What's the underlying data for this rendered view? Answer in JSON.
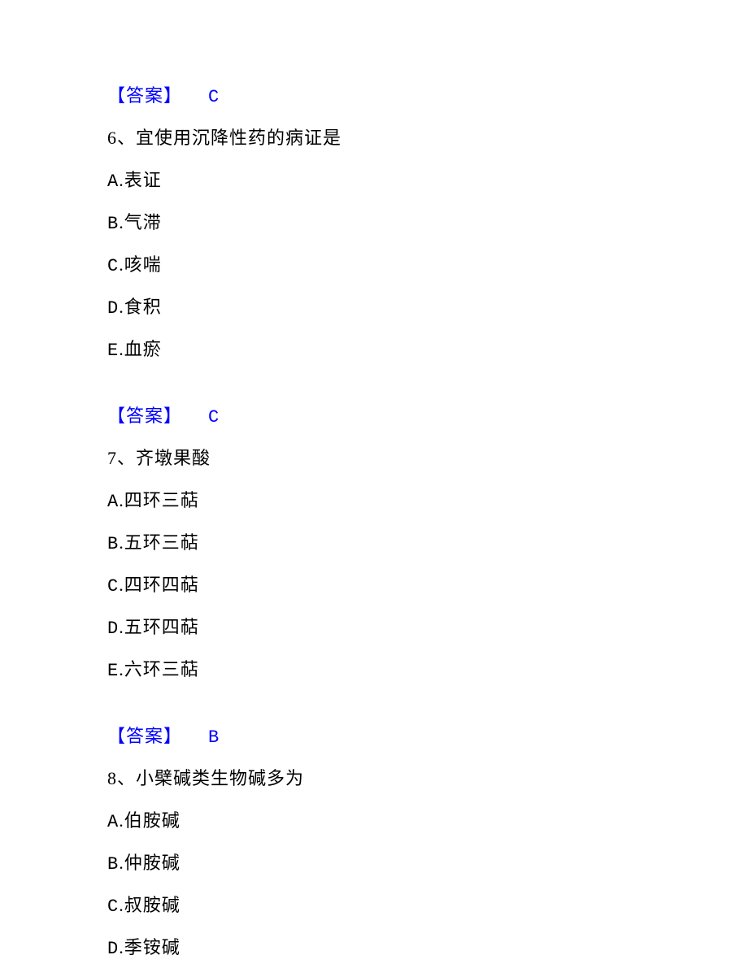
{
  "colors": {
    "answer_color": "#0000ff",
    "text_color": "#000000",
    "background": "#ffffff"
  },
  "typography": {
    "font_family": "SimSun",
    "font_size": 22,
    "line_spacing": 20
  },
  "answer_label": "【答案】",
  "blocks": [
    {
      "type": "answer",
      "value": "C"
    },
    {
      "type": "question",
      "number": "6",
      "separator": "、",
      "text": "宜使用沉降性药的病证是",
      "options": [
        {
          "letter": "A",
          "text": "表证"
        },
        {
          "letter": "B",
          "text": "气滞"
        },
        {
          "letter": "C",
          "text": "咳喘"
        },
        {
          "letter": "D",
          "text": "食积"
        },
        {
          "letter": "E",
          "text": "血瘀"
        }
      ]
    },
    {
      "type": "answer",
      "value": "C"
    },
    {
      "type": "question",
      "number": "7",
      "separator": "、",
      "text": "齐墩果酸",
      "options": [
        {
          "letter": "A",
          "text": "四环三萜"
        },
        {
          "letter": "B",
          "text": "五环三萜"
        },
        {
          "letter": "C",
          "text": "四环四萜"
        },
        {
          "letter": "D",
          "text": "五环四萜"
        },
        {
          "letter": "E",
          "text": "六环三萜"
        }
      ]
    },
    {
      "type": "answer",
      "value": "B"
    },
    {
      "type": "question",
      "number": "8",
      "separator": "、",
      "text": "小檗碱类生物碱多为",
      "options": [
        {
          "letter": "A",
          "text": "伯胺碱"
        },
        {
          "letter": "B",
          "text": "仲胺碱"
        },
        {
          "letter": "C",
          "text": "叔胺碱"
        },
        {
          "letter": "D",
          "text": "季铵碱"
        }
      ]
    }
  ]
}
